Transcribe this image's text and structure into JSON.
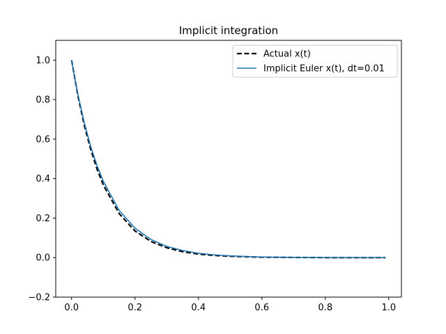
{
  "chart_data": {
    "type": "line",
    "title": "Implicit integration",
    "xlabel": "",
    "ylabel": "",
    "xlim": [
      -0.05,
      1.04
    ],
    "ylim": [
      -0.2,
      1.1
    ],
    "x_ticks": [
      0.0,
      0.2,
      0.4,
      0.6,
      0.8,
      1.0
    ],
    "y_ticks": [
      -0.2,
      0.0,
      0.2,
      0.4,
      0.6,
      0.8,
      1.0
    ],
    "x_tick_labels": [
      "0.0",
      "0.2",
      "0.4",
      "0.6",
      "0.8",
      "1.0"
    ],
    "y_tick_labels": [
      "−0.2",
      "0.0",
      "0.2",
      "0.4",
      "0.6",
      "0.8",
      "1.0"
    ],
    "grid": false,
    "legend_position": "top-right",
    "series": [
      {
        "name": "Actual x(t)",
        "color": "#000000",
        "style": "dashed",
        "x": [
          0.0,
          0.02,
          0.04,
          0.06,
          0.08,
          0.1,
          0.15,
          0.2,
          0.25,
          0.3,
          0.35,
          0.4,
          0.45,
          0.5,
          0.6,
          0.7,
          0.8,
          0.9,
          0.99
        ],
        "y": [
          1.0,
          0.819,
          0.67,
          0.549,
          0.449,
          0.368,
          0.223,
          0.135,
          0.082,
          0.05,
          0.03,
          0.018,
          0.011,
          0.007,
          0.002,
          0.001,
          0.0,
          0.0,
          0.0
        ]
      },
      {
        "name": "Implicit Euler x(t), dt=0.01",
        "color": "#1f77b4",
        "style": "solid",
        "x": [
          0.0,
          0.02,
          0.04,
          0.06,
          0.08,
          0.1,
          0.15,
          0.2,
          0.25,
          0.3,
          0.35,
          0.4,
          0.45,
          0.5,
          0.6,
          0.7,
          0.8,
          0.9,
          0.99
        ],
        "y": [
          1.0,
          0.826,
          0.683,
          0.564,
          0.467,
          0.386,
          0.239,
          0.149,
          0.092,
          0.057,
          0.036,
          0.022,
          0.014,
          0.009,
          0.003,
          0.001,
          0.0,
          0.0,
          0.0
        ]
      }
    ]
  }
}
